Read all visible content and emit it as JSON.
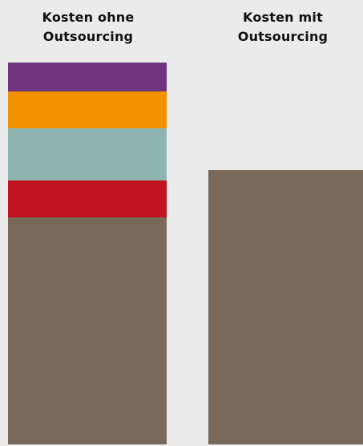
{
  "chart_data": {
    "type": "bar",
    "stacked": true,
    "categories": [
      "Kosten ohne\nOutsourcing",
      "Kosten mit\nOutsourcing"
    ],
    "series": [
      {
        "color": "#79695a",
        "values": [
          283,
          342
        ]
      },
      {
        "color": "#c0121f",
        "values": [
          46,
          0
        ]
      },
      {
        "color": "#8fb5b3",
        "values": [
          65,
          0
        ]
      },
      {
        "color": "#f39200",
        "values": [
          46,
          0
        ]
      },
      {
        "color": "#70337f",
        "values": [
          36,
          0
        ]
      }
    ],
    "ylim": [
      0,
      476
    ],
    "grid": false,
    "legend": "none"
  }
}
